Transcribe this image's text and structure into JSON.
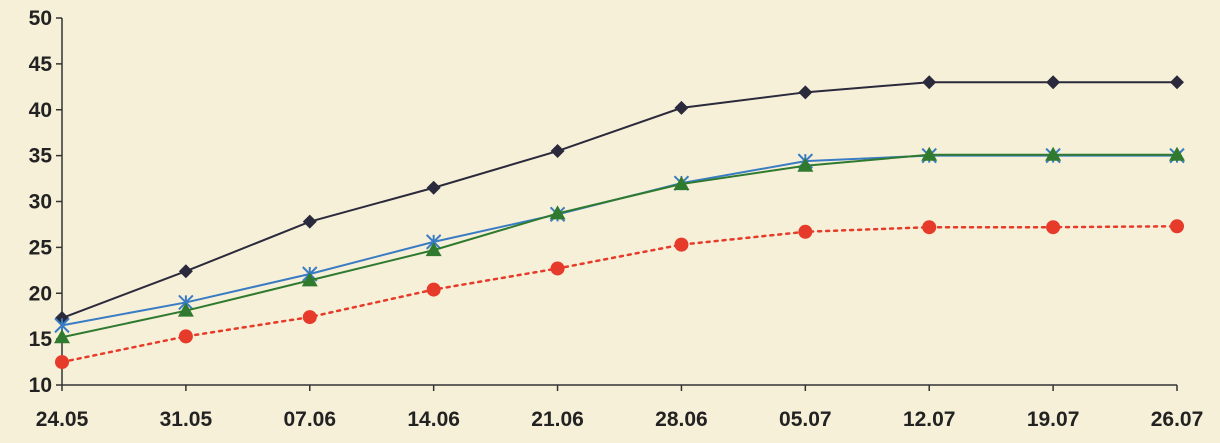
{
  "chart_data": {
    "type": "line",
    "categories": [
      "24.05",
      "31.05",
      "07.06",
      "14.06",
      "21.06",
      "28.06",
      "05.07",
      "12.07",
      "19.07",
      "26.07"
    ],
    "ylim": [
      10,
      50
    ],
    "yticks": [
      10,
      15,
      20,
      25,
      30,
      35,
      40,
      45,
      50
    ],
    "grid": false,
    "series": [
      {
        "values": [
          17.3,
          22.4,
          27.8,
          31.5,
          35.5,
          40.2,
          41.9,
          43.0,
          43.0,
          43.0
        ],
        "color": "#2b2a3c",
        "marker": "diamond",
        "dash": "solid"
      },
      {
        "values": [
          16.5,
          19.0,
          22.1,
          25.6,
          28.6,
          32.0,
          34.4,
          35.0,
          35.0,
          35.0
        ],
        "color": "#3a7cc4",
        "marker": "asterisk",
        "dash": "solid"
      },
      {
        "values": [
          15.2,
          18.1,
          21.4,
          24.7,
          28.7,
          31.9,
          33.9,
          35.1,
          35.1,
          35.1
        ],
        "color": "#2f7a2f",
        "marker": "triangle",
        "dash": "solid"
      },
      {
        "values": [
          12.5,
          15.3,
          17.4,
          20.4,
          22.7,
          25.3,
          26.7,
          27.2,
          27.2,
          27.3
        ],
        "color": "#e63a2a",
        "marker": "circle",
        "dash": "dotted"
      }
    ]
  }
}
